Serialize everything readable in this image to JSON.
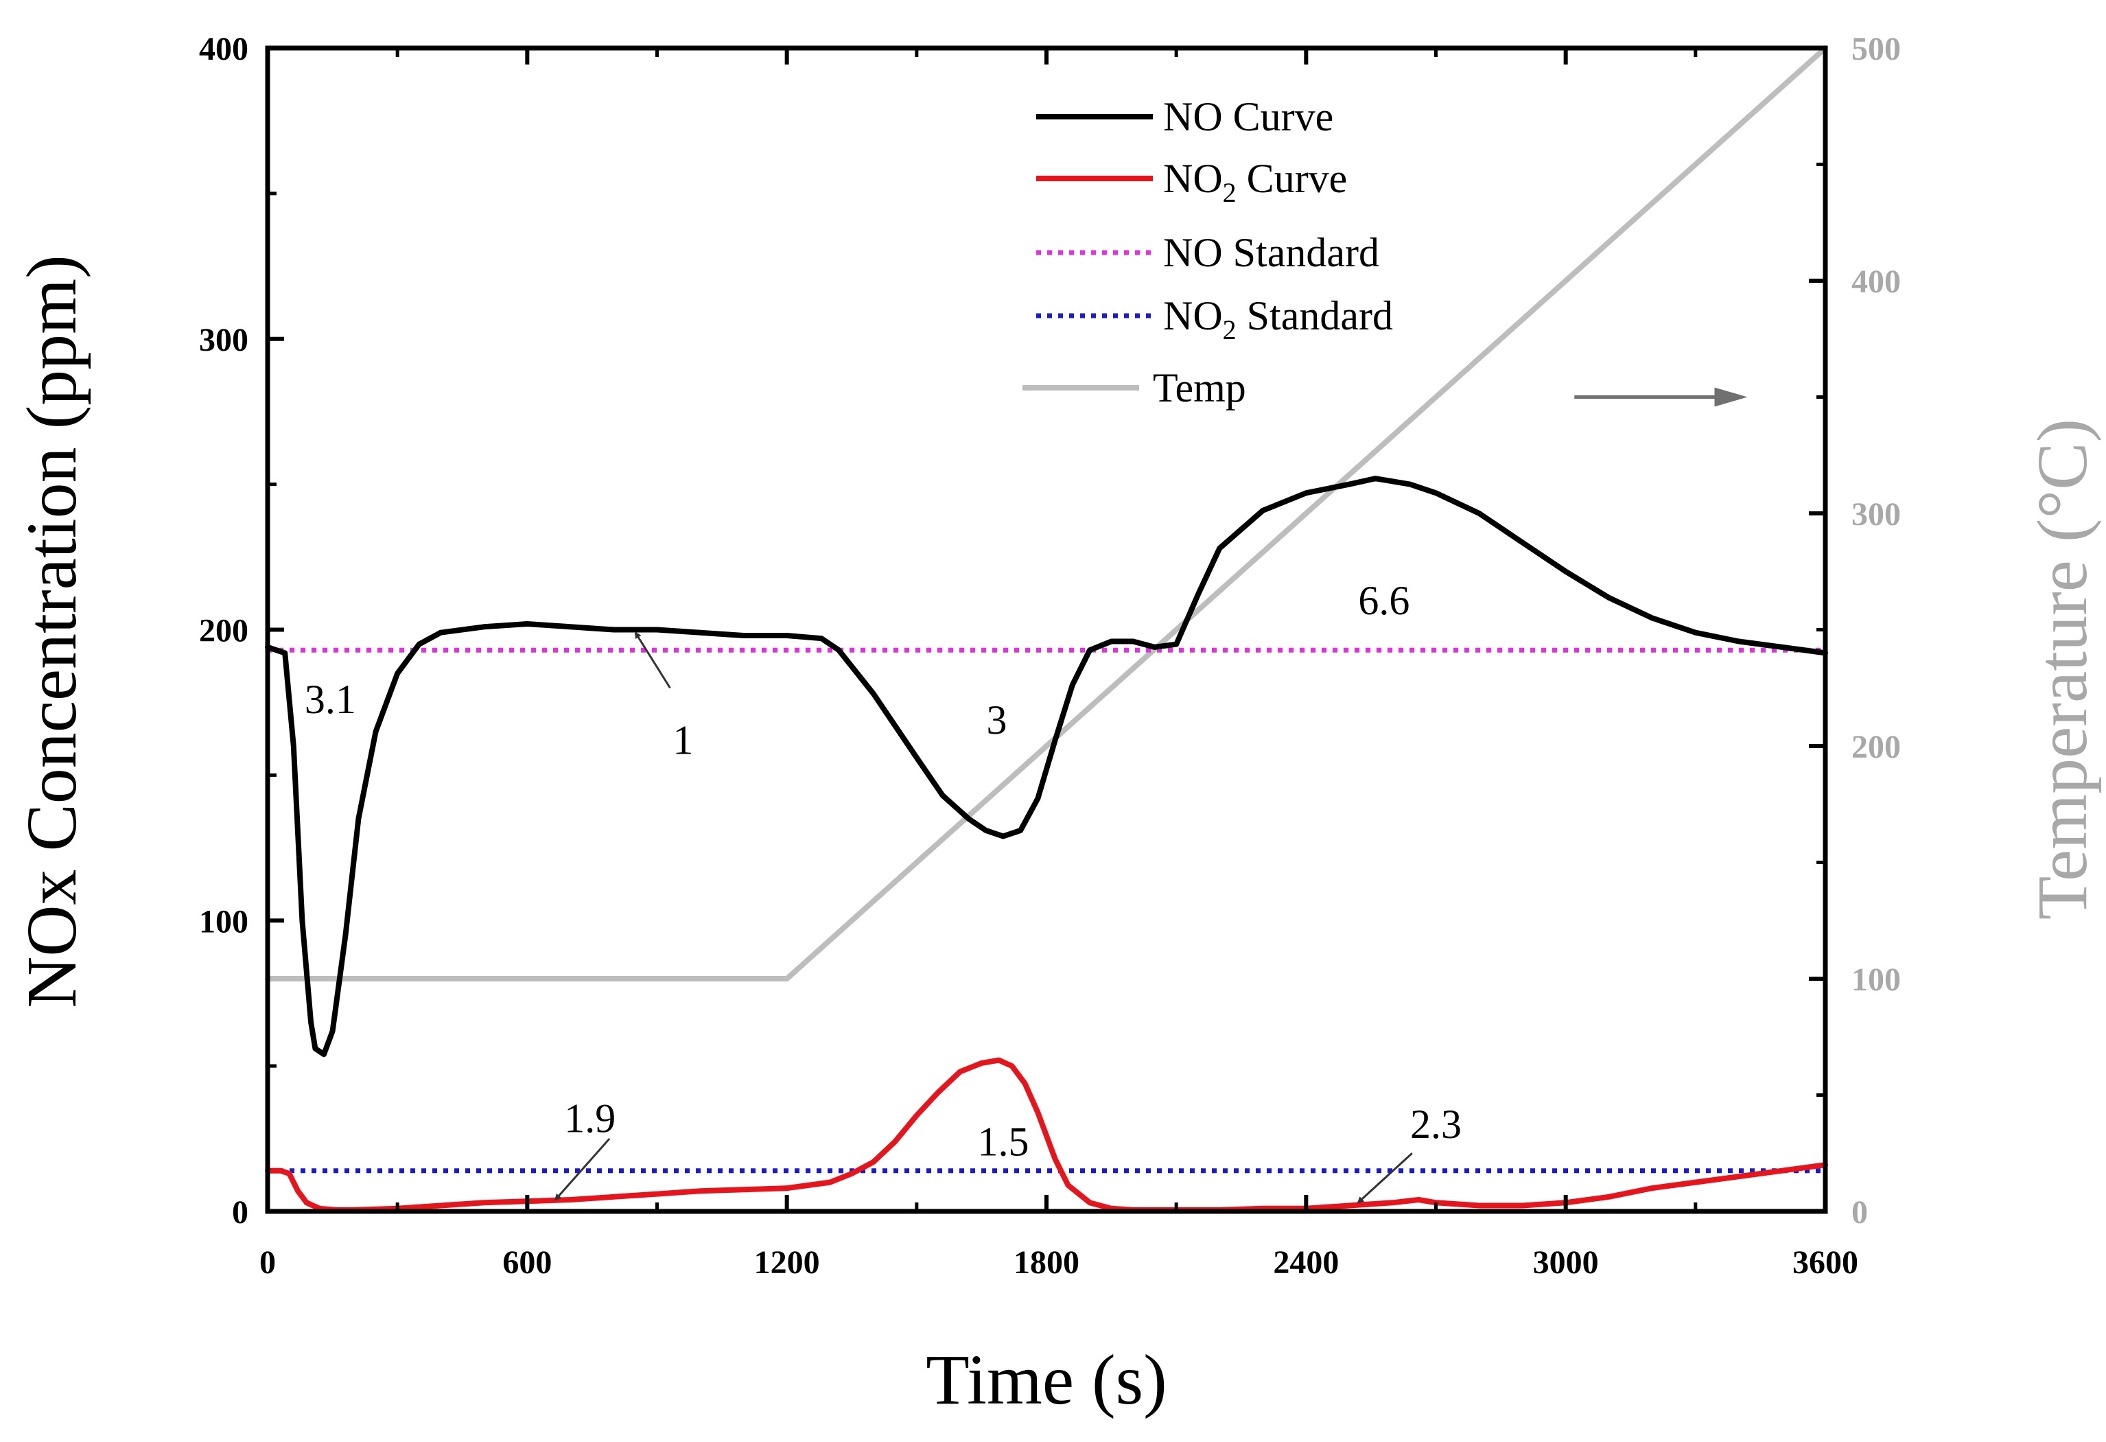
{
  "chart_data": {
    "type": "line",
    "title": "",
    "xlabel": "Time (s)",
    "ylabel": "NOx Concentration (ppm)",
    "y2label": "Temperature (°C)",
    "xlim": [
      0,
      3600
    ],
    "ylim": [
      0,
      400
    ],
    "y2lim": [
      0,
      500
    ],
    "xticks": [
      0,
      600,
      1200,
      1800,
      2400,
      3000,
      3600
    ],
    "xtick_labels": [
      "0",
      "600",
      "1200",
      "1800",
      "2400",
      "3000",
      "3600"
    ],
    "yticks": [
      0,
      100,
      200,
      300,
      400
    ],
    "ytick_labels": [
      "0",
      "100",
      "200",
      "300",
      "400"
    ],
    "y2ticks": [
      0,
      100,
      200,
      300,
      400,
      500
    ],
    "y2tick_labels": [
      "0",
      "100",
      "200",
      "300",
      "400",
      "500"
    ],
    "grid": false,
    "legend_position": "top-center",
    "colors": {
      "no_curve": "#000000",
      "no2_curve": "#e8141b",
      "no_standard": "#e62ee6",
      "no2_standard": "#1a1ad6",
      "temp": "#bdbdbd",
      "right_axis": "#a8a8a8",
      "arrow": "#707070"
    },
    "series": [
      {
        "name": "NO Curve",
        "legend": "NO Curve",
        "axis": "left",
        "style": "solid",
        "x": [
          0,
          20,
          40,
          60,
          80,
          100,
          110,
          130,
          150,
          180,
          210,
          250,
          300,
          350,
          400,
          500,
          600,
          700,
          800,
          900,
          1000,
          1100,
          1200,
          1280,
          1320,
          1400,
          1500,
          1560,
          1620,
          1660,
          1700,
          1740,
          1780,
          1820,
          1860,
          1900,
          1950,
          2000,
          2050,
          2100,
          2150,
          2200,
          2300,
          2400,
          2500,
          2560,
          2640,
          2700,
          2800,
          2900,
          3000,
          3100,
          3200,
          3300,
          3400,
          3500,
          3600
        ],
        "y": [
          194,
          193,
          192,
          160,
          100,
          65,
          56,
          54,
          62,
          95,
          135,
          165,
          185,
          195,
          199,
          201,
          202,
          201,
          200,
          200,
          199,
          198,
          198,
          197,
          193,
          178,
          156,
          143,
          135,
          131,
          129,
          131,
          142,
          162,
          181,
          193,
          196,
          196,
          194,
          195,
          212,
          228,
          241,
          247,
          250,
          252,
          250,
          247,
          240,
          230,
          220,
          211,
          204,
          199,
          196,
          194,
          192
        ]
      },
      {
        "name": "NO2 Curve",
        "legend": "NO",
        "legend_sub": "2",
        "legend_suffix": " Curve",
        "axis": "left",
        "style": "solid",
        "x": [
          0,
          30,
          50,
          70,
          90,
          120,
          160,
          200,
          300,
          400,
          500,
          600,
          700,
          800,
          900,
          1000,
          1100,
          1200,
          1300,
          1350,
          1400,
          1450,
          1500,
          1550,
          1600,
          1650,
          1690,
          1720,
          1750,
          1780,
          1800,
          1820,
          1850,
          1900,
          1950,
          2000,
          2100,
          2200,
          2300,
          2400,
          2500,
          2600,
          2660,
          2700,
          2800,
          2900,
          3000,
          3100,
          3200,
          3300,
          3400,
          3500,
          3600
        ],
        "y": [
          14,
          14,
          13,
          7,
          3,
          1,
          0.5,
          0.5,
          1,
          2,
          3,
          3.5,
          4,
          5,
          6,
          7,
          7.5,
          8,
          10,
          13,
          17,
          24,
          33,
          41,
          48,
          51,
          52,
          50,
          44,
          34,
          26,
          18,
          9,
          3,
          1,
          0.5,
          0.5,
          0.5,
          1,
          1,
          2,
          3,
          4,
          3,
          2,
          2,
          3,
          5,
          8,
          10,
          12,
          14,
          16
        ]
      },
      {
        "name": "NO Standard",
        "legend": "NO Standard",
        "axis": "left",
        "style": "dotted",
        "x": [
          0,
          3600
        ],
        "y": [
          193,
          193
        ]
      },
      {
        "name": "NO2 Standard",
        "legend": "NO",
        "legend_sub": "2",
        "legend_suffix": " Standard",
        "axis": "left",
        "style": "dotted",
        "x": [
          0,
          3600
        ],
        "y": [
          14,
          14
        ]
      },
      {
        "name": "Temp",
        "legend": "Temp",
        "axis": "right",
        "style": "solid",
        "x": [
          0,
          1200,
          3600
        ],
        "y": [
          100,
          100,
          500
        ]
      }
    ],
    "annotations": [
      {
        "text": "3.1",
        "x": 145,
        "y": 176
      },
      {
        "text": "1",
        "x": 960,
        "y": 162,
        "arrow_from": [
          930,
          180
        ],
        "arrow_to": [
          850,
          199
        ]
      },
      {
        "text": "3",
        "x": 1685,
        "y": 169
      },
      {
        "text": "6.6",
        "x": 2580,
        "y": 210
      },
      {
        "text": "1.9",
        "x": 745,
        "y": 32,
        "arrow_from": [
          790,
          25
        ],
        "arrow_to": [
          665,
          4
        ]
      },
      {
        "text": "1.5",
        "x": 1700,
        "y": 24
      },
      {
        "text": "2.3",
        "x": 2700,
        "y": 30,
        "arrow_from": [
          2645,
          20
        ],
        "arrow_to": [
          2520,
          3
        ]
      }
    ],
    "axis_direction_arrow": {
      "points_to": "right-axis",
      "from": [
        3020,
        280
      ],
      "to": [
        3420,
        280
      ]
    }
  }
}
